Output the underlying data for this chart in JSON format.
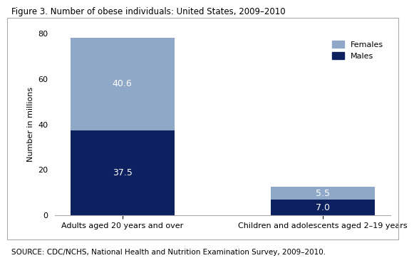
{
  "title": "Figure 3. Number of obese individuals: United States, 2009–2010",
  "categories": [
    "Adults aged 20 years and over",
    "Children and adolescents aged 2–19 years"
  ],
  "males": [
    37.5,
    7.0
  ],
  "females": [
    40.6,
    5.5
  ],
  "male_color": "#0d2060",
  "female_color": "#8fa8c8",
  "ylabel": "Number in millions",
  "ylim": [
    0,
    80
  ],
  "yticks": [
    0,
    20,
    40,
    60,
    80
  ],
  "source_text": "SOURCE: CDC/NCHS, National Health and Nutrition Examination Survey, 2009–2010.",
  "label_color": "#ffffff",
  "label_fontsize": 9,
  "title_fontsize": 8.5,
  "axis_fontsize": 8,
  "tick_fontsize": 8,
  "source_fontsize": 7.5,
  "bar_positions": [
    0.25,
    0.75
  ],
  "bar_width": 0.22
}
